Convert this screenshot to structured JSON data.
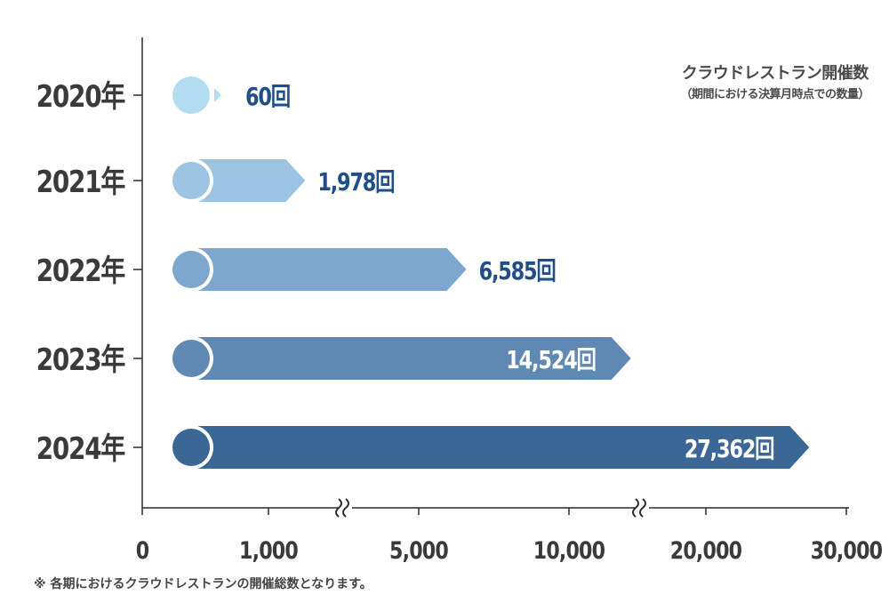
{
  "chart_data": {
    "type": "bar",
    "orientation": "horizontal",
    "title": "クラウドレストラン開催数",
    "subtitle": "（期間における決算月時点での数量）",
    "categories": [
      "2020年",
      "2021年",
      "2022年",
      "2023年",
      "2024年"
    ],
    "series": [
      {
        "values": [
          60,
          1978,
          6585,
          14524,
          27362
        ]
      }
    ],
    "data_labels": [
      "60回",
      "1,978回",
      "6,585回",
      "14,524回",
      "27,362回"
    ],
    "x_ticks": [
      "0",
      "1,000",
      "5,000",
      "10,000",
      "20,000",
      "30,000"
    ],
    "x_tick_values": [
      0,
      1000,
      5000,
      10000,
      20000,
      30000
    ],
    "axis_breaks": [
      "between 1,000 and 5,000",
      "between 10,000 and 20,000"
    ],
    "xlim": [
      0,
      30000
    ],
    "grid": false,
    "colors": [
      "#b3dcf3",
      "#9cc4e2",
      "#7ea7cf",
      "#5f88b3",
      "#3b6796"
    ],
    "label_color_outside": "#1f4f86",
    "label_color_inside": "#ffffff"
  },
  "footnote": "※ 各期におけるクラウドレストランの開催総数となります。"
}
